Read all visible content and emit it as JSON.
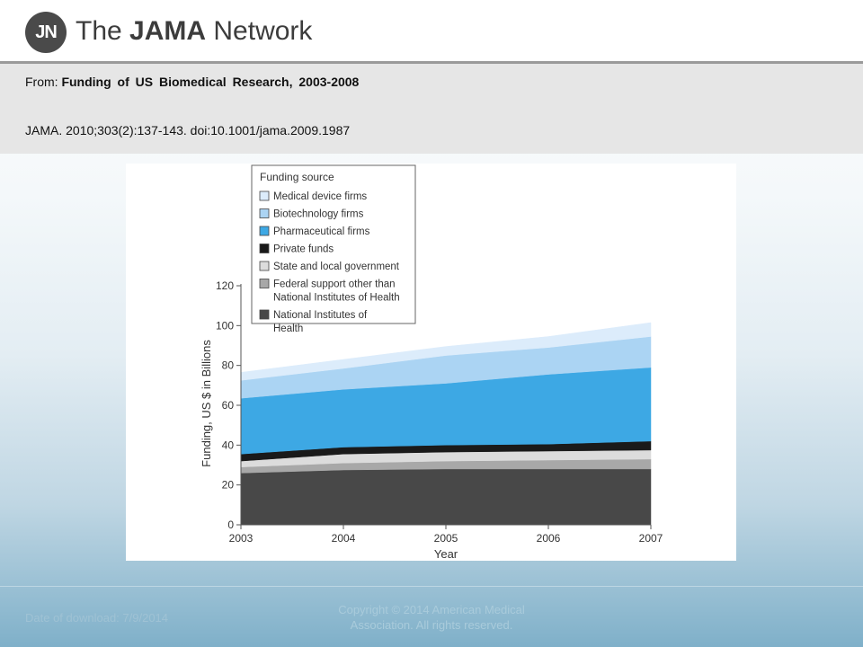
{
  "brand": {
    "monogram": "JN",
    "name_light": "The ",
    "name_bold": "JAMA",
    "name_rest": " Network"
  },
  "header": {
    "from_label": "From:",
    "article_title": "Funding of US Biomedical Research, 2003-2008",
    "citation": "JAMA. 2010;303(2):137-143. doi:10.1001/jama.2009.1987"
  },
  "footer": {
    "download": "Date of download:  7/9/2014",
    "copyright": "Copyright © 2014 American Medical Association. All rights reserved."
  },
  "chart_data": {
    "type": "area",
    "stacked": true,
    "x": [
      2003,
      2004,
      2005,
      2006,
      2007
    ],
    "xlabel": "Year",
    "ylabel": "Funding, US $ in Billions",
    "ylim": [
      0,
      120
    ],
    "yticks": [
      0,
      20,
      40,
      60,
      80,
      100,
      120
    ],
    "legend_title": "Funding source",
    "legend_position": "top-left",
    "series": [
      {
        "name": "National Institutes of Health",
        "color": "#484848",
        "values": [
          26,
          27.5,
          28,
          28,
          28
        ]
      },
      {
        "name": "Federal support other than National Institutes of Health",
        "color": "#a8a8a8",
        "values": [
          3,
          3.5,
          4,
          4.5,
          5
        ]
      },
      {
        "name": "State and local government",
        "color": "#dcdcdc",
        "values": [
          3,
          4.5,
          4.5,
          4.5,
          4.5
        ]
      },
      {
        "name": "Private funds",
        "color": "#1a1a1a",
        "values": [
          3.5,
          3.5,
          3.5,
          3.5,
          4.5
        ]
      },
      {
        "name": "Pharmaceutical firms",
        "color": "#3da8e4",
        "values": [
          28,
          29,
          31,
          35,
          37
        ]
      },
      {
        "name": "Biotechnology firms",
        "color": "#abd4f3",
        "values": [
          9,
          10.5,
          14,
          13.5,
          15.5
        ]
      },
      {
        "name": "Medical device firms",
        "color": "#dcecfb",
        "values": [
          4,
          4.5,
          4.5,
          5.5,
          7
        ]
      }
    ],
    "legend_order": [
      "Medical device firms",
      "Biotechnology firms",
      "Pharmaceutical firms",
      "Private funds",
      "State and local government",
      "Federal support other than National Institutes of Health",
      "National Institutes of Health"
    ]
  }
}
